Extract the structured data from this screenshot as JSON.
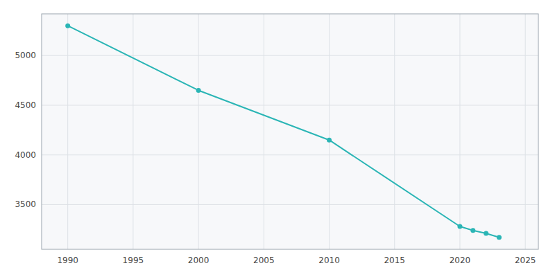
{
  "chart_data": {
    "type": "line",
    "x": [
      1990,
      2000,
      2010,
      2020,
      2021,
      2022,
      2023
    ],
    "values": [
      5300,
      4650,
      4150,
      3280,
      3240,
      3210,
      3170
    ],
    "color": "#2ab5b5",
    "marker": "circle",
    "xlim": [
      1988,
      2026
    ],
    "ylim": [
      3050,
      5420
    ],
    "xticks": [
      1990,
      1995,
      2000,
      2005,
      2010,
      2015,
      2020,
      2025
    ],
    "yticks": [
      3500,
      4000,
      4500,
      5000
    ],
    "grid": true
  }
}
